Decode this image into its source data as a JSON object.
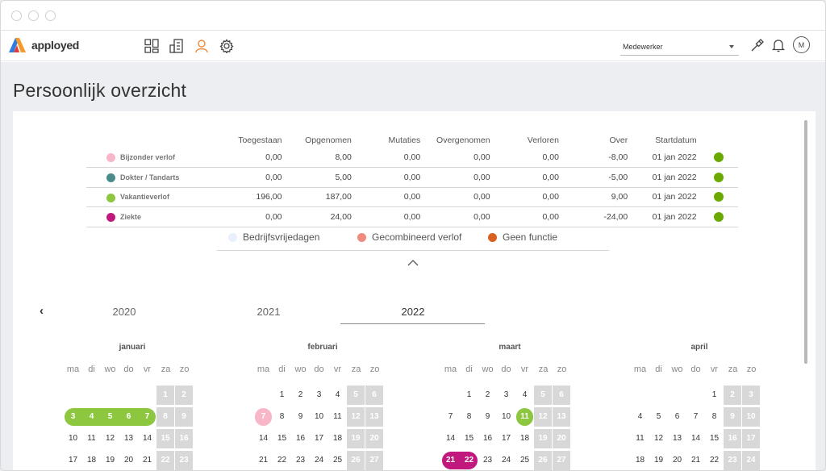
{
  "brand": {
    "name": "apployed"
  },
  "nav_icons": [
    "dashboard-icon",
    "building-icon",
    "user-icon",
    "gear-icon"
  ],
  "header": {
    "role_select": "Medewerker",
    "avatar_initial": "M"
  },
  "page": {
    "title": "Persoonlijk overzicht"
  },
  "balance": {
    "columns": [
      "Toegestaan",
      "Opgenomen",
      "Mutaties",
      "Overgenomen",
      "Verloren",
      "Over",
      "Startdatum"
    ],
    "rows": [
      {
        "label": "Bijzonder verlof",
        "color": "#f7b7c8",
        "values": [
          "0,00",
          "8,00",
          "0,00",
          "0,00",
          "0,00",
          "-8,00",
          "01 jan 2022"
        ]
      },
      {
        "label": "Dokter / Tandarts",
        "color": "#4a8c8c",
        "values": [
          "0,00",
          "5,00",
          "0,00",
          "0,00",
          "0,00",
          "-5,00",
          "01 jan 2022"
        ]
      },
      {
        "label": "Vakantieverlof",
        "color": "#8dc63f",
        "values": [
          "196,00",
          "187,00",
          "0,00",
          "0,00",
          "0,00",
          "9,00",
          "01 jan 2022"
        ]
      },
      {
        "label": "Ziekte",
        "color": "#c0187d",
        "values": [
          "0,00",
          "24,00",
          "0,00",
          "0,00",
          "0,00",
          "-24,00",
          "01 jan 2022"
        ]
      }
    ],
    "status_color": "#6aa900"
  },
  "legend": [
    {
      "label": "Bedrijfsvrijedagen",
      "color": "#e8f0fb"
    },
    {
      "label": "Gecombineerd verlof",
      "color": "#f08a7e"
    },
    {
      "label": "Geen functie",
      "color": "#d9601e"
    }
  ],
  "years": {
    "prev_icon": "chevron-left-icon",
    "items": [
      "2020",
      "2021",
      "2022"
    ],
    "active": "2022"
  },
  "weekdays": [
    "ma",
    "di",
    "wo",
    "do",
    "vr",
    "za",
    "zo"
  ],
  "months": [
    {
      "name": "januari",
      "weeks": [
        [
          "",
          "",
          "",
          "",
          "",
          "1",
          "2"
        ],
        [
          "3",
          "4",
          "5",
          "6",
          "7",
          "8",
          "9"
        ],
        [
          "10",
          "11",
          "12",
          "13",
          "14",
          "15",
          "16"
        ],
        [
          "17",
          "18",
          "19",
          "20",
          "21",
          "22",
          "23"
        ]
      ],
      "marked": {
        "3": "green",
        "4": "green",
        "5": "green",
        "6": "green",
        "7": "green"
      }
    },
    {
      "name": "februari",
      "weeks": [
        [
          "",
          "1",
          "2",
          "3",
          "4",
          "5",
          "6"
        ],
        [
          "7",
          "8",
          "9",
          "10",
          "11",
          "12",
          "13"
        ],
        [
          "14",
          "15",
          "16",
          "17",
          "18",
          "19",
          "20"
        ],
        [
          "21",
          "22",
          "23",
          "24",
          "25",
          "26",
          "27"
        ]
      ],
      "marked": {
        "7": "pink"
      }
    },
    {
      "name": "maart",
      "weeks": [
        [
          "",
          "1",
          "2",
          "3",
          "4",
          "5",
          "6"
        ],
        [
          "7",
          "8",
          "9",
          "10",
          "11",
          "12",
          "13"
        ],
        [
          "14",
          "15",
          "16",
          "17",
          "18",
          "19",
          "20"
        ],
        [
          "21",
          "22",
          "23",
          "24",
          "25",
          "26",
          "27"
        ]
      ],
      "marked": {
        "11": "green",
        "21": "magenta",
        "22": "magenta"
      }
    },
    {
      "name": "april",
      "weeks": [
        [
          "",
          "",
          "",
          "",
          "1",
          "2",
          "3"
        ],
        [
          "4",
          "5",
          "6",
          "7",
          "8",
          "9",
          "10"
        ],
        [
          "11",
          "12",
          "13",
          "14",
          "15",
          "16",
          "17"
        ],
        [
          "18",
          "19",
          "20",
          "21",
          "22",
          "23",
          "24"
        ]
      ],
      "marked": {}
    }
  ],
  "colors": {
    "green": "#8dc63f",
    "pink": "#f7b7c8",
    "magenta": "#c0187d",
    "weekend": "#d8d8d8",
    "accent": "#f08a3e"
  }
}
